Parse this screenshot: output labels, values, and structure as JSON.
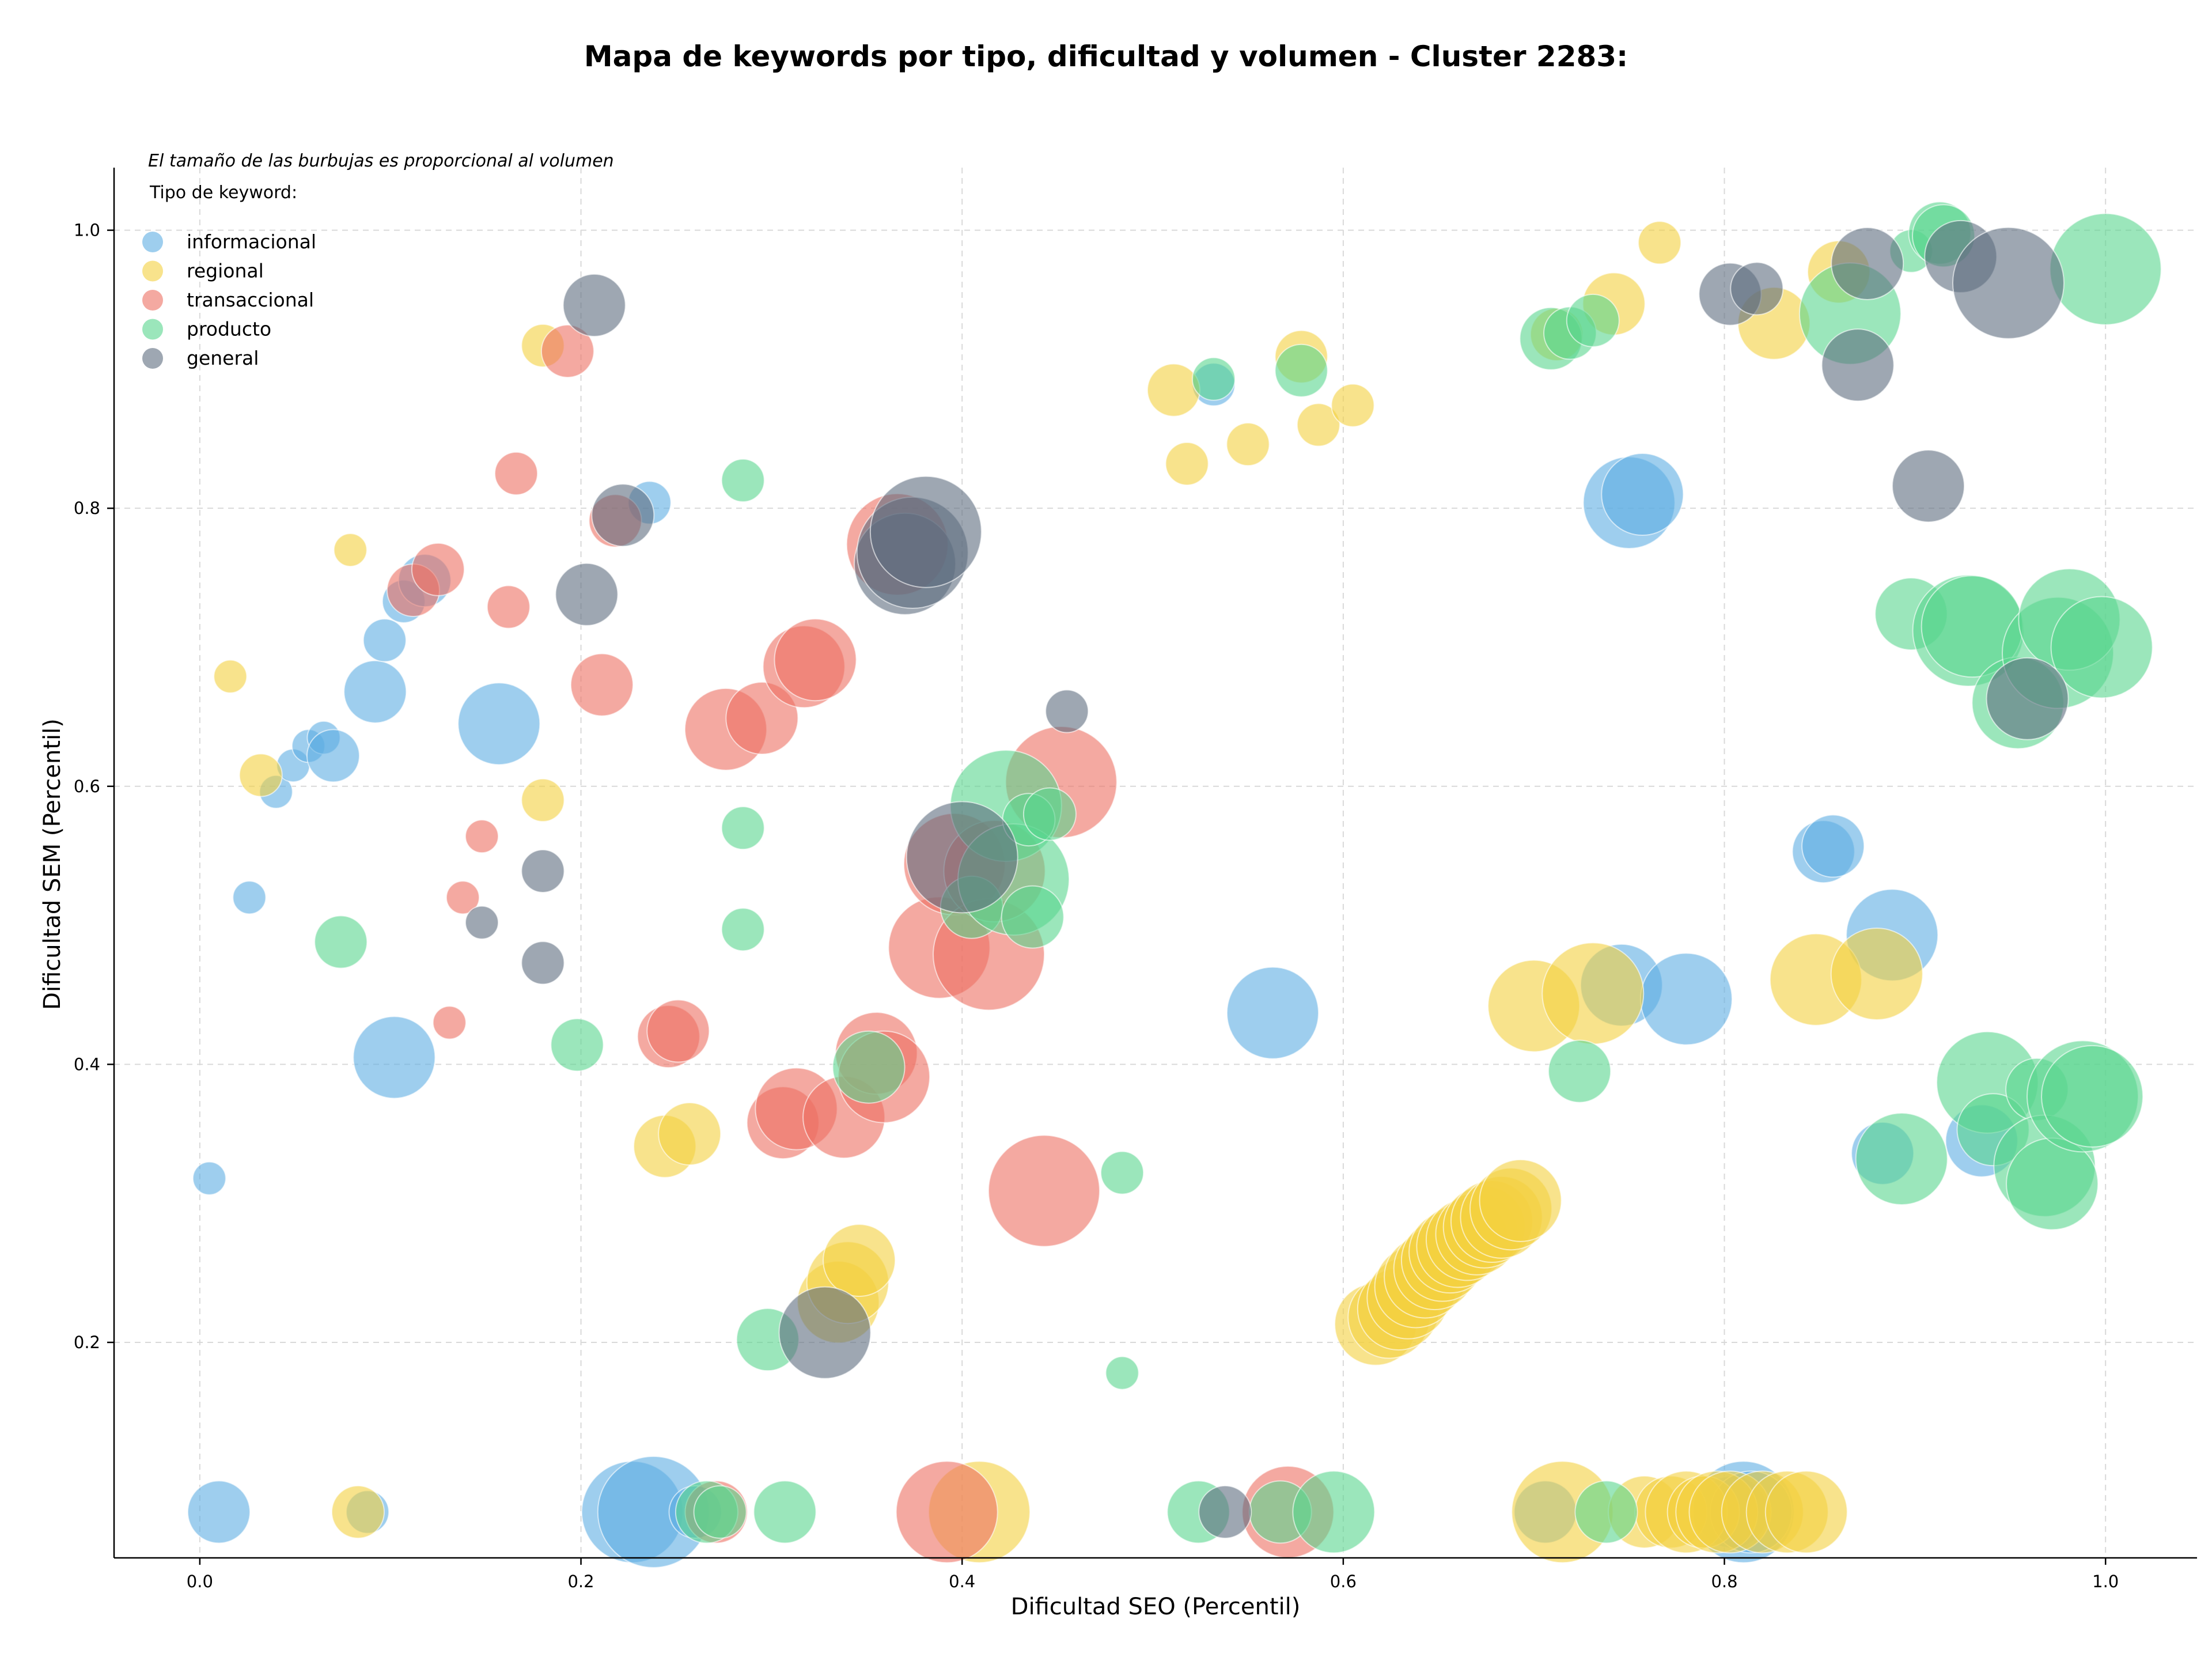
{
  "chart_data": {
    "type": "scatter",
    "title": "Mapa de keywords por tipo, dificultad y volumen - Cluster 2283:",
    "xlabel": "Dificultad SEO (Percentil)",
    "ylabel": "Dificultad SEM (Percentil)",
    "annotation": "El tamaño de las burbujas es proporcional al volumen",
    "legend_title": "Tipo de keyword:",
    "legend_position": "top-left",
    "grid": true,
    "xlim": [
      -0.045,
      1.048
    ],
    "ylim": [
      0.045,
      1.045
    ],
    "xticks": [
      0.0,
      0.2,
      0.4,
      0.6,
      0.8,
      1.0
    ],
    "xtick_labels": [
      "0.0",
      "0.2",
      "0.4",
      "0.6",
      "0.8",
      "1.0"
    ],
    "yticks": [
      0.2,
      0.4,
      0.6,
      0.8,
      1.0
    ],
    "ytick_labels": [
      "0.2",
      "0.4",
      "0.6",
      "0.8",
      "1.0"
    ],
    "series": [
      {
        "name": "informacional",
        "color": "#5DADE2",
        "points": [
          [
            0.005,
            0.318,
            1
          ],
          [
            0.01,
            0.078,
            4
          ],
          [
            0.026,
            0.52,
            1
          ],
          [
            0.04,
            0.596,
            1
          ],
          [
            0.049,
            0.615,
            1
          ],
          [
            0.057,
            0.629,
            1
          ],
          [
            0.065,
            0.635,
            1
          ],
          [
            0.07,
            0.622,
            3
          ],
          [
            0.092,
            0.668,
            4
          ],
          [
            0.097,
            0.705,
            2
          ],
          [
            0.102,
            0.405,
            6
          ],
          [
            0.107,
            0.733,
            2
          ],
          [
            0.118,
            0.748,
            3
          ],
          [
            0.157,
            0.645,
            6
          ],
          [
            0.236,
            0.804,
            2
          ],
          [
            0.088,
            0.078,
            2
          ],
          [
            0.227,
            0.078,
            8
          ],
          [
            0.238,
            0.078,
            9
          ],
          [
            0.26,
            0.078,
            3
          ],
          [
            0.532,
            0.889,
            2
          ],
          [
            0.563,
            0.437,
            7
          ],
          [
            0.75,
            0.804,
            7
          ],
          [
            0.757,
            0.81,
            6
          ],
          [
            0.746,
            0.457,
            6
          ],
          [
            0.78,
            0.447,
            7
          ],
          [
            0.706,
            0.078,
            4
          ],
          [
            0.804,
            0.078,
            5
          ],
          [
            0.81,
            0.078,
            8
          ],
          [
            0.814,
            0.078,
            6
          ],
          [
            0.852,
            0.553,
            4
          ],
          [
            0.857,
            0.557,
            4
          ],
          [
            0.888,
            0.493,
            7
          ],
          [
            0.883,
            0.336,
            4
          ],
          [
            0.935,
            0.345,
            5
          ]
        ]
      },
      {
        "name": "regional",
        "color": "#F4D03F",
        "points": [
          [
            0.016,
            0.679,
            1
          ],
          [
            0.032,
            0.608,
            2
          ],
          [
            0.079,
            0.77,
            1
          ],
          [
            0.083,
            0.078,
            3
          ],
          [
            0.18,
            0.917,
            2
          ],
          [
            0.18,
            0.59,
            2
          ],
          [
            0.244,
            0.341,
            4
          ],
          [
            0.257,
            0.35,
            4
          ],
          [
            0.335,
            0.229,
            6
          ],
          [
            0.34,
            0.243,
            6
          ],
          [
            0.346,
            0.259,
            5
          ],
          [
            0.409,
            0.078,
            8
          ],
          [
            0.511,
            0.885,
            3
          ],
          [
            0.518,
            0.832,
            2
          ],
          [
            0.55,
            0.846,
            2
          ],
          [
            0.578,
            0.909,
            3
          ],
          [
            0.587,
            0.86,
            2
          ],
          [
            0.605,
            0.874,
            2
          ],
          [
            0.617,
            0.213,
            6
          ],
          [
            0.624,
            0.218,
            6
          ],
          [
            0.629,
            0.224,
            6
          ],
          [
            0.634,
            0.232,
            6
          ],
          [
            0.638,
            0.24,
            6
          ],
          [
            0.643,
            0.247,
            6
          ],
          [
            0.648,
            0.253,
            6
          ],
          [
            0.652,
            0.259,
            6
          ],
          [
            0.656,
            0.265,
            6
          ],
          [
            0.66,
            0.269,
            6
          ],
          [
            0.665,
            0.274,
            6
          ],
          [
            0.67,
            0.278,
            6
          ],
          [
            0.674,
            0.283,
            6
          ],
          [
            0.678,
            0.287,
            6
          ],
          [
            0.683,
            0.29,
            6
          ],
          [
            0.688,
            0.296,
            6
          ],
          [
            0.693,
            0.302,
            6
          ],
          [
            0.7,
            0.442,
            7
          ],
          [
            0.712,
            0.925,
            3
          ],
          [
            0.715,
            0.078,
            8
          ],
          [
            0.731,
            0.451,
            8
          ],
          [
            0.742,
            0.947,
            4
          ],
          [
            0.758,
            0.078,
            5
          ],
          [
            0.766,
            0.991,
            2
          ],
          [
            0.772,
            0.078,
            5
          ],
          [
            0.78,
            0.078,
            6
          ],
          [
            0.789,
            0.078,
            5
          ],
          [
            0.796,
            0.078,
            6
          ],
          [
            0.803,
            0.078,
            6
          ],
          [
            0.82,
            0.078,
            6
          ],
          [
            0.826,
            0.933,
            5
          ],
          [
            0.833,
            0.078,
            6
          ],
          [
            0.843,
            0.078,
            6
          ],
          [
            0.848,
            0.461,
            7
          ],
          [
            0.86,
            0.97,
            4
          ],
          [
            0.88,
            0.465,
            7
          ]
        ]
      },
      {
        "name": "transaccional",
        "color": "#EC7063",
        "points": [
          [
            0.112,
            0.741,
            3
          ],
          [
            0.125,
            0.756,
            3
          ],
          [
            0.131,
            0.43,
            1
          ],
          [
            0.138,
            0.52,
            1
          ],
          [
            0.148,
            0.564,
            1
          ],
          [
            0.162,
            0.729,
            2
          ],
          [
            0.166,
            0.825,
            2
          ],
          [
            0.193,
            0.913,
            3
          ],
          [
            0.211,
            0.673,
            4
          ],
          [
            0.218,
            0.791,
            3
          ],
          [
            0.246,
            0.42,
            4
          ],
          [
            0.251,
            0.424,
            4
          ],
          [
            0.271,
            0.078,
            4
          ],
          [
            0.276,
            0.641,
            6
          ],
          [
            0.295,
            0.649,
            5
          ],
          [
            0.306,
            0.358,
            5
          ],
          [
            0.313,
            0.368,
            6
          ],
          [
            0.317,
            0.686,
            6
          ],
          [
            0.323,
            0.691,
            6
          ],
          [
            0.338,
            0.362,
            6
          ],
          [
            0.355,
            0.408,
            6
          ],
          [
            0.359,
            0.391,
            7
          ],
          [
            0.366,
            0.774,
            8
          ],
          [
            0.388,
            0.484,
            8
          ],
          [
            0.392,
            0.078,
            8
          ],
          [
            0.396,
            0.544,
            8
          ],
          [
            0.414,
            0.479,
            9
          ],
          [
            0.417,
            0.539,
            8
          ],
          [
            0.443,
            0.309,
            9
          ],
          [
            0.452,
            0.603,
            9
          ],
          [
            0.571,
            0.078,
            7
          ]
        ]
      },
      {
        "name": "producto",
        "color": "#58D68D",
        "points": [
          [
            0.074,
            0.488,
            3
          ],
          [
            0.198,
            0.414,
            3
          ],
          [
            0.266,
            0.078,
            4
          ],
          [
            0.273,
            0.078,
            3
          ],
          [
            0.285,
            0.82,
            2
          ],
          [
            0.285,
            0.57,
            2
          ],
          [
            0.285,
            0.497,
            2
          ],
          [
            0.298,
            0.202,
            4
          ],
          [
            0.307,
            0.078,
            4
          ],
          [
            0.351,
            0.398,
            5
          ],
          [
            0.405,
            0.513,
            4
          ],
          [
            0.423,
            0.586,
            9
          ],
          [
            0.427,
            0.533,
            9
          ],
          [
            0.435,
            0.576,
            3
          ],
          [
            0.437,
            0.506,
            4
          ],
          [
            0.446,
            0.58,
            3
          ],
          [
            0.484,
            0.322,
            2
          ],
          [
            0.484,
            0.178,
            1
          ],
          [
            0.524,
            0.078,
            4
          ],
          [
            0.532,
            0.893,
            2
          ],
          [
            0.567,
            0.078,
            4
          ],
          [
            0.578,
            0.899,
            3
          ],
          [
            0.595,
            0.078,
            6
          ],
          [
            0.709,
            0.922,
            4
          ],
          [
            0.719,
            0.926,
            3
          ],
          [
            0.724,
            0.395,
            4
          ],
          [
            0.731,
            0.935,
            3
          ],
          [
            0.738,
            0.078,
            4
          ],
          [
            0.866,
            0.94,
            8
          ],
          [
            0.893,
            0.332,
            7
          ],
          [
            0.898,
            0.985,
            2
          ],
          [
            0.898,
            0.724,
            5
          ],
          [
            0.913,
            0.998,
            4
          ],
          [
            0.915,
            0.996,
            4
          ],
          [
            0.928,
            0.712,
            9
          ],
          [
            0.93,
            0.715,
            8
          ],
          [
            0.938,
            0.387,
            8
          ],
          [
            0.941,
            0.353,
            5
          ],
          [
            0.954,
            0.66,
            7
          ],
          [
            0.964,
            0.382,
            4
          ],
          [
            0.968,
            0.327,
            8
          ],
          [
            0.972,
            0.314,
            7
          ],
          [
            0.975,
            0.696,
            9
          ],
          [
            0.981,
            0.72,
            8
          ],
          [
            0.988,
            0.377,
            9
          ],
          [
            0.993,
            0.377,
            8
          ],
          [
            0.998,
            0.7,
            8
          ],
          [
            1.0,
            0.972,
            9
          ]
        ]
      },
      {
        "name": "general",
        "color": "#5D6D7E",
        "points": [
          [
            0.148,
            0.502,
            1
          ],
          [
            0.18,
            0.539,
            2
          ],
          [
            0.18,
            0.473,
            2
          ],
          [
            0.203,
            0.738,
            4
          ],
          [
            0.207,
            0.946,
            4
          ],
          [
            0.222,
            0.795,
            4
          ],
          [
            0.328,
            0.207,
            7
          ],
          [
            0.37,
            0.76,
            8
          ],
          [
            0.374,
            0.768,
            9
          ],
          [
            0.381,
            0.783,
            9
          ],
          [
            0.4,
            0.549,
            9
          ],
          [
            0.455,
            0.654,
            2
          ],
          [
            0.538,
            0.078,
            3
          ],
          [
            0.803,
            0.954,
            4
          ],
          [
            0.817,
            0.958,
            3
          ],
          [
            0.87,
            0.903,
            5
          ],
          [
            0.875,
            0.976,
            5
          ],
          [
            0.907,
            0.816,
            5
          ],
          [
            0.924,
            0.981,
            5
          ],
          [
            0.949,
            0.962,
            9
          ],
          [
            0.959,
            0.663,
            6
          ]
        ]
      }
    ]
  }
}
